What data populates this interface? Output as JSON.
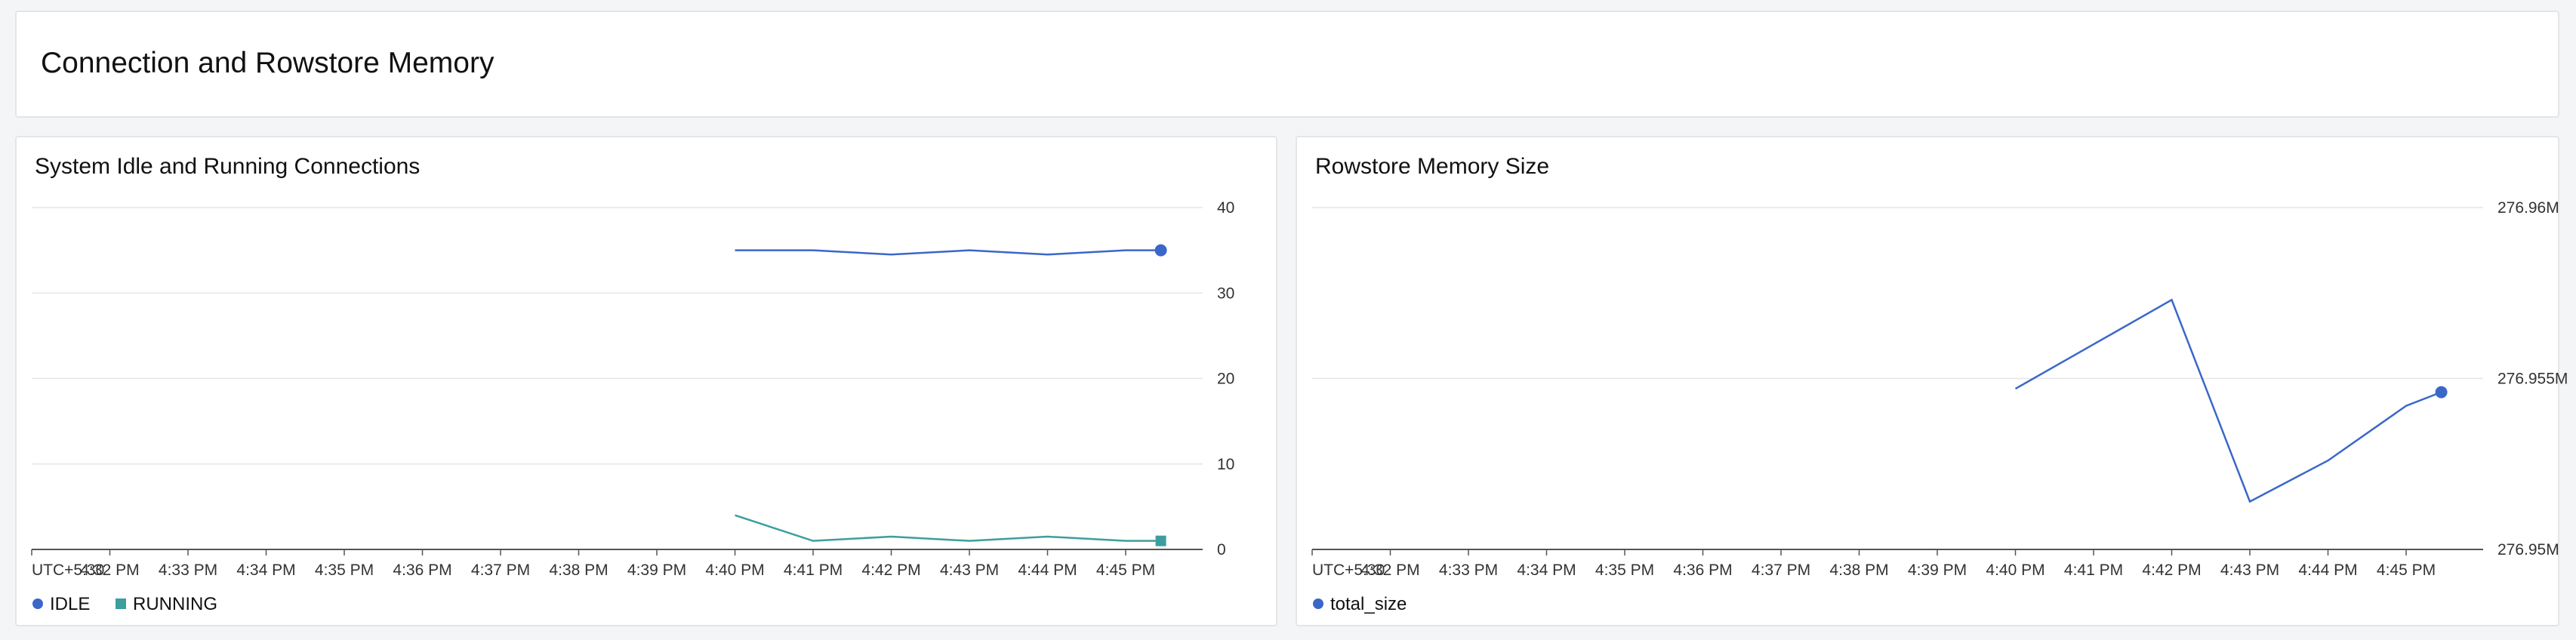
{
  "page": {
    "title": "Connection and Rowstore Memory"
  },
  "colors": {
    "idle": "#3a67c9",
    "running": "#3d9e9e",
    "total_size": "#3a67c9",
    "grid": "#e6e6e6",
    "axis": "#555555"
  },
  "chart_data": [
    {
      "type": "line",
      "title": "System Idle and Running Connections",
      "xlabel": "",
      "ylabel": "",
      "x_ticks": [
        "UTC+5:30",
        "4:32 PM",
        "4:33 PM",
        "4:34 PM",
        "4:35 PM",
        "4:36 PM",
        "4:37 PM",
        "4:38 PM",
        "4:39 PM",
        "4:40 PM",
        "4:41 PM",
        "4:42 PM",
        "4:43 PM",
        "4:44 PM",
        "4:45 PM"
      ],
      "y_ticks": [
        "40",
        "30",
        "20",
        "10",
        "0"
      ],
      "ylim": [
        0,
        40
      ],
      "y_axis_side": "right",
      "grid": true,
      "legend_position": "bottom-left",
      "series": [
        {
          "name": "IDLE",
          "marker": "circle",
          "x": [
            "4:40 PM",
            "4:41 PM",
            "4:42 PM",
            "4:43 PM",
            "4:44 PM",
            "4:45 PM",
            "4:45:30 PM"
          ],
          "x_index": [
            9,
            10,
            11,
            12,
            13,
            14,
            14.45
          ],
          "values": [
            35,
            35,
            34.5,
            35,
            34.5,
            35,
            35
          ]
        },
        {
          "name": "RUNNING",
          "marker": "square",
          "x": [
            "4:40 PM",
            "4:41 PM",
            "4:42 PM",
            "4:43 PM",
            "4:44 PM",
            "4:45 PM",
            "4:45:30 PM"
          ],
          "x_index": [
            9,
            10,
            11,
            12,
            13,
            14,
            14.45
          ],
          "values": [
            4,
            1,
            1.5,
            1,
            1.5,
            1,
            1
          ]
        }
      ]
    },
    {
      "type": "line",
      "title": "Rowstore Memory Size",
      "xlabel": "",
      "ylabel": "",
      "x_ticks": [
        "UTC+5:30",
        "4:32 PM",
        "4:33 PM",
        "4:34 PM",
        "4:35 PM",
        "4:36 PM",
        "4:37 PM",
        "4:38 PM",
        "4:39 PM",
        "4:40 PM",
        "4:41 PM",
        "4:42 PM",
        "4:43 PM",
        "4:44 PM",
        "4:45 PM"
      ],
      "y_ticks": [
        "276.96M",
        "276.955M",
        "276.95M"
      ],
      "ylim": [
        276.95,
        276.96
      ],
      "y_unit": "M",
      "y_axis_side": "right",
      "grid": true,
      "legend_position": "bottom-left",
      "series": [
        {
          "name": "total_size",
          "marker": "circle",
          "x": [
            "4:40 PM",
            "4:41 PM",
            "4:42 PM",
            "4:43 PM",
            "4:44 PM",
            "4:45 PM",
            "4:45:30 PM"
          ],
          "x_index": [
            9,
            10,
            11,
            12,
            13,
            14,
            14.45
          ],
          "values": [
            276.9547,
            276.956,
            276.9573,
            276.9514,
            276.9526,
            276.9542,
            276.9546
          ]
        }
      ]
    }
  ]
}
